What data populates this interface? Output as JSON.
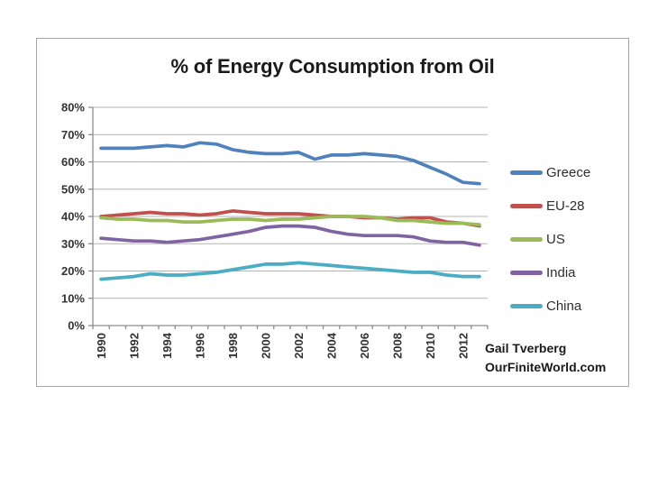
{
  "page": {
    "background": "#ffffff",
    "frame_border": "#a6a6a6"
  },
  "attribution": {
    "line1": "Gail Tverberg",
    "line2": "OurFiniteWorld.com"
  },
  "chart_data": {
    "type": "line",
    "title": "% of Energy Consumption from Oil",
    "x": [
      1990,
      1991,
      1992,
      1993,
      1994,
      1995,
      1996,
      1997,
      1998,
      1999,
      2000,
      2001,
      2002,
      2003,
      2004,
      2005,
      2006,
      2007,
      2008,
      2009,
      2010,
      2011,
      2012,
      2013
    ],
    "x_tick_labels": [
      "1990",
      "1992",
      "1994",
      "1996",
      "1998",
      "2000",
      "2002",
      "2004",
      "2006",
      "2008",
      "2010",
      "2012"
    ],
    "y_tick_labels": [
      "0%",
      "10%",
      "20%",
      "30%",
      "40%",
      "50%",
      "60%",
      "70%",
      "80%"
    ],
    "ylim": [
      0,
      80
    ],
    "ylabel": "",
    "xlabel": "",
    "grid": true,
    "grid_color": "#b3b3b3",
    "axis_color": "#8c8c8c",
    "legend_position": "right",
    "series": [
      {
        "name": "Greece",
        "color": "#4F81BD",
        "values": [
          65,
          65,
          65,
          65.5,
          66,
          65.5,
          67,
          66.5,
          64.5,
          63.5,
          63,
          63,
          63.5,
          61,
          62.5,
          62.5,
          63,
          62.5,
          62,
          60.5,
          58,
          55.5,
          52.5,
          52
        ]
      },
      {
        "name": "EU-28",
        "color": "#C0504D",
        "values": [
          40,
          40.5,
          41,
          41.5,
          41,
          41,
          40.5,
          41,
          42,
          41.5,
          41,
          41,
          41,
          40.5,
          40,
          40,
          39.5,
          39.5,
          39,
          39.5,
          39.5,
          38,
          37.5,
          36.5
        ]
      },
      {
        "name": "US",
        "color": "#9BBB59",
        "values": [
          39.5,
          39,
          39,
          38.5,
          38.5,
          38,
          38,
          38.5,
          39,
          39,
          38.5,
          39,
          39,
          39.5,
          40,
          40,
          40,
          39.5,
          38.5,
          38.5,
          38,
          37.5,
          37.5,
          37
        ]
      },
      {
        "name": "India",
        "color": "#8064A2",
        "values": [
          32,
          31.5,
          31,
          31,
          30.5,
          31,
          31.5,
          32.5,
          33.5,
          34.5,
          36,
          36.5,
          36.5,
          36,
          34.5,
          33.5,
          33,
          33,
          33,
          32.5,
          31,
          30.5,
          30.5,
          29.5
        ]
      },
      {
        "name": "China",
        "color": "#4BACC6",
        "values": [
          17,
          17.5,
          18,
          19,
          18.5,
          18.5,
          19,
          19.5,
          20.5,
          21.5,
          22.5,
          22.5,
          23,
          22.5,
          22,
          21.5,
          21,
          20.5,
          20,
          19.5,
          19.5,
          18.5,
          18,
          18
        ]
      }
    ]
  }
}
